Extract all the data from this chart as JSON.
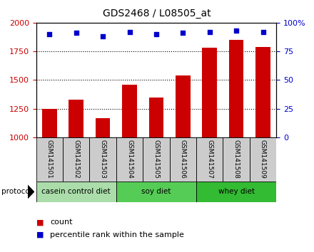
{
  "title": "GDS2468 / L08505_at",
  "samples": [
    "GSM141501",
    "GSM141502",
    "GSM141503",
    "GSM141504",
    "GSM141505",
    "GSM141506",
    "GSM141507",
    "GSM141508",
    "GSM141509"
  ],
  "counts": [
    1250,
    1330,
    1170,
    1460,
    1350,
    1540,
    1780,
    1850,
    1790
  ],
  "percentiles": [
    90,
    91,
    88,
    92,
    90,
    91,
    92,
    93,
    92
  ],
  "ylim_left": [
    1000,
    2000
  ],
  "ylim_right": [
    0,
    100
  ],
  "yticks_left": [
    1000,
    1250,
    1500,
    1750,
    2000
  ],
  "yticks_right": [
    0,
    25,
    50,
    75,
    100
  ],
  "bar_color": "#cc0000",
  "dot_color": "#0000cc",
  "groups": [
    {
      "label": "casein control diet",
      "start": 0,
      "end": 3,
      "color": "#aaddaa"
    },
    {
      "label": "soy diet",
      "start": 3,
      "end": 6,
      "color": "#55cc55"
    },
    {
      "label": "whey diet",
      "start": 6,
      "end": 9,
      "color": "#33bb33"
    }
  ],
  "protocol_label": "protocol",
  "legend_count_label": "count",
  "legend_pct_label": "percentile rank within the sample",
  "tick_label_color_left": "#cc0000",
  "tick_label_color_right": "#0000cc",
  "sample_box_color": "#cccccc",
  "title_fontsize": 10,
  "axis_fontsize": 8,
  "legend_fontsize": 8
}
